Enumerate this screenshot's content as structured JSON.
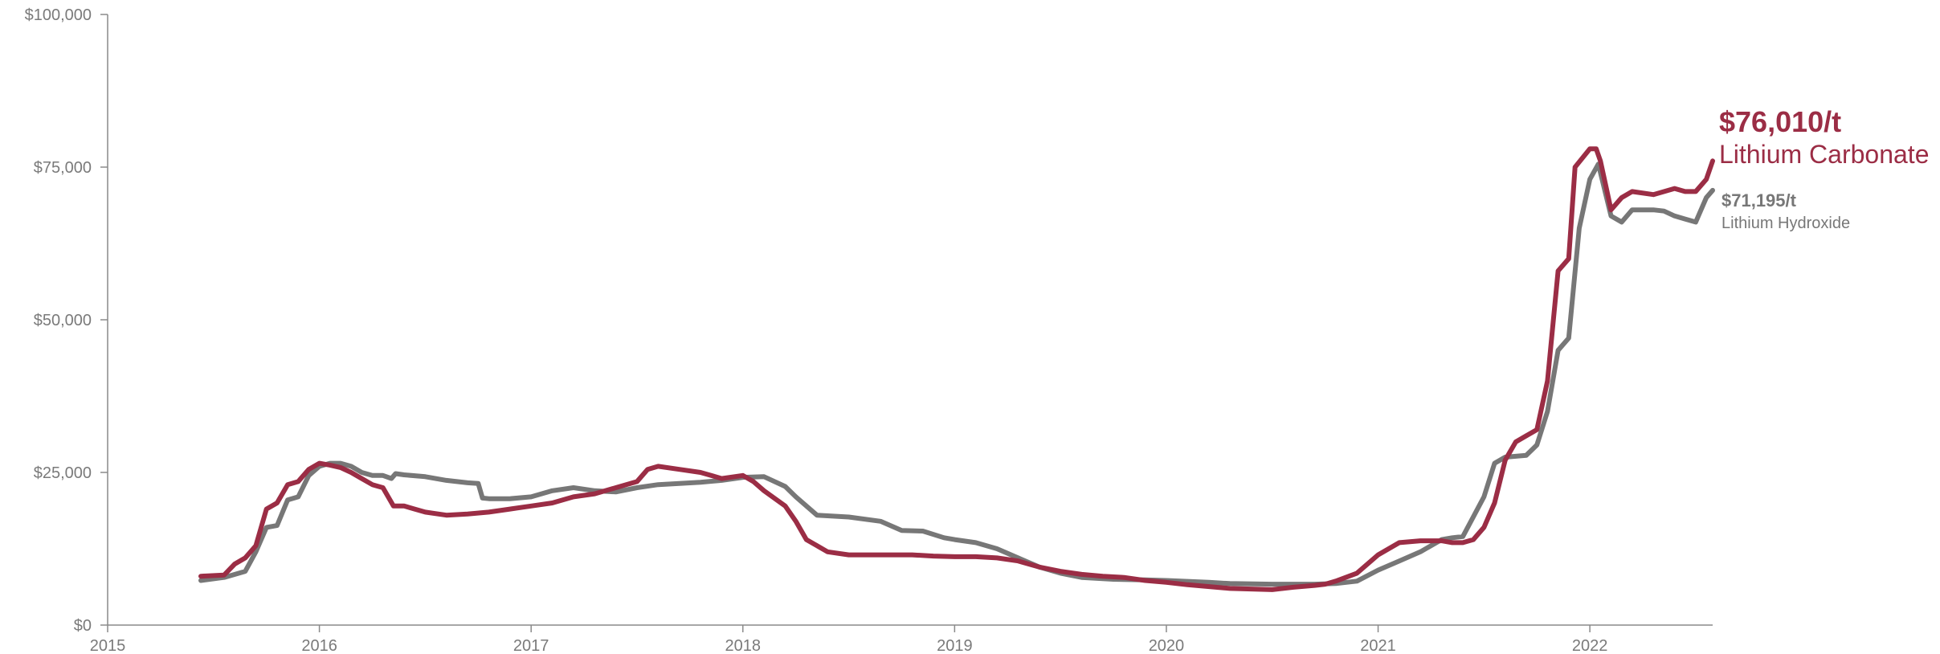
{
  "chart_data": {
    "type": "line",
    "xlim": [
      2015,
      2022.58
    ],
    "ylim": [
      0,
      100000
    ],
    "x_ticks": [
      2015,
      2016,
      2017,
      2018,
      2019,
      2020,
      2021,
      2022
    ],
    "x_tick_labels": [
      "2015",
      "2016",
      "2017",
      "2018",
      "2019",
      "2020",
      "2021",
      "2022"
    ],
    "y_ticks": [
      0,
      25000,
      50000,
      75000,
      100000
    ],
    "y_tick_labels": [
      "$0",
      "$25,000",
      "$50,000",
      "$75,000",
      "$100,000"
    ],
    "grid": false,
    "series": [
      {
        "name": "Lithium Hydroxide",
        "color": "#777777",
        "x": [
          2015.44,
          2015.55,
          2015.65,
          2015.7,
          2015.75,
          2015.8,
          2015.85,
          2015.9,
          2015.95,
          2016.0,
          2016.05,
          2016.1,
          2016.15,
          2016.2,
          2016.25,
          2016.3,
          2016.34,
          2016.36,
          2016.4,
          2016.5,
          2016.6,
          2016.7,
          2016.75,
          2016.77,
          2016.8,
          2016.9,
          2017.0,
          2017.1,
          2017.2,
          2017.3,
          2017.4,
          2017.5,
          2017.6,
          2017.7,
          2017.8,
          2017.9,
          2018.0,
          2018.1,
          2018.2,
          2018.25,
          2018.35,
          2018.5,
          2018.65,
          2018.75,
          2018.85,
          2018.95,
          2019.0,
          2019.1,
          2019.2,
          2019.3,
          2019.4,
          2019.5,
          2019.6,
          2019.75,
          2019.9,
          2020.0,
          2020.2,
          2020.3,
          2020.5,
          2020.7,
          2020.8,
          2020.9,
          2021.0,
          2021.1,
          2021.2,
          2021.3,
          2021.35,
          2021.4,
          2021.5,
          2021.55,
          2021.6,
          2021.7,
          2021.75,
          2021.8,
          2021.85,
          2021.9,
          2021.95,
          2022.0,
          2022.04,
          2022.1,
          2022.15,
          2022.2,
          2022.3,
          2022.35,
          2022.4,
          2022.45,
          2022.5,
          2022.55,
          2022.58
        ],
        "y": [
          7300,
          7800,
          8800,
          12000,
          16000,
          16300,
          20500,
          21000,
          24500,
          26000,
          26500,
          26500,
          26000,
          25000,
          24500,
          24500,
          24000,
          24800,
          24600,
          24300,
          23700,
          23300,
          23200,
          20800,
          20700,
          20700,
          21000,
          22000,
          22500,
          22000,
          21800,
          22500,
          23000,
          23200,
          23400,
          23700,
          24200,
          24300,
          22700,
          21000,
          18000,
          17700,
          17000,
          15500,
          15400,
          14300,
          14000,
          13500,
          12500,
          11000,
          9500,
          8500,
          7800,
          7500,
          7400,
          7300,
          7000,
          6800,
          6700,
          6700,
          6800,
          7200,
          9000,
          10500,
          12000,
          14000,
          14300,
          14500,
          21000,
          26500,
          27500,
          27800,
          29500,
          35000,
          45000,
          47000,
          65000,
          73000,
          75500,
          67000,
          66000,
          68000,
          68000,
          67800,
          67000,
          66500,
          66000,
          70000,
          71195
        ]
      },
      {
        "name": "Lithium Carbonate",
        "color": "#9b2d45",
        "x": [
          2015.44,
          2015.55,
          2015.6,
          2015.65,
          2015.7,
          2015.75,
          2015.8,
          2015.85,
          2015.9,
          2015.95,
          2016.0,
          2016.05,
          2016.1,
          2016.15,
          2016.2,
          2016.25,
          2016.3,
          2016.35,
          2016.4,
          2016.45,
          2016.5,
          2016.6,
          2016.7,
          2016.8,
          2016.9,
          2017.0,
          2017.1,
          2017.2,
          2017.3,
          2017.4,
          2017.5,
          2017.55,
          2017.6,
          2017.7,
          2017.8,
          2017.9,
          2018.0,
          2018.05,
          2018.1,
          2018.2,
          2018.25,
          2018.3,
          2018.4,
          2018.5,
          2018.6,
          2018.7,
          2018.8,
          2018.9,
          2019.0,
          2019.1,
          2019.2,
          2019.3,
          2019.4,
          2019.5,
          2019.6,
          2019.7,
          2019.8,
          2019.9,
          2020.0,
          2020.1,
          2020.3,
          2020.5,
          2020.6,
          2020.7,
          2020.75,
          2020.8,
          2020.9,
          2021.0,
          2021.1,
          2021.2,
          2021.3,
          2021.35,
          2021.4,
          2021.45,
          2021.5,
          2021.55,
          2021.6,
          2021.65,
          2021.7,
          2021.75,
          2021.8,
          2021.85,
          2021.9,
          2021.93,
          2022.0,
          2022.03,
          2022.05,
          2022.1,
          2022.15,
          2022.2,
          2022.3,
          2022.4,
          2022.45,
          2022.5,
          2022.55,
          2022.58
        ],
        "y": [
          8000,
          8200,
          10000,
          11000,
          13000,
          19000,
          20000,
          23000,
          23500,
          25500,
          26500,
          26200,
          25800,
          25000,
          24000,
          23000,
          22500,
          19500,
          19500,
          19000,
          18500,
          18000,
          18200,
          18500,
          19000,
          19500,
          20000,
          21000,
          21500,
          22500,
          23500,
          25500,
          26000,
          25500,
          25000,
          24000,
          24500,
          23500,
          22000,
          19500,
          17000,
          14000,
          12000,
          11500,
          11500,
          11500,
          11500,
          11300,
          11200,
          11200,
          11000,
          10500,
          9500,
          8800,
          8300,
          8000,
          7800,
          7300,
          7000,
          6600,
          6000,
          5800,
          6200,
          6500,
          6700,
          7200,
          8500,
          11500,
          13500,
          13800,
          13800,
          13500,
          13500,
          14000,
          16000,
          20000,
          27000,
          30000,
          31000,
          32000,
          40000,
          58000,
          60000,
          75000,
          78000,
          78000,
          76000,
          68000,
          70000,
          71000,
          70500,
          71500,
          71000,
          71000,
          73000,
          76010
        ]
      }
    ]
  },
  "annotations": {
    "carbonate_value": "$76,010/t",
    "carbonate_name": "Lithium Carbonate",
    "hydroxide_value": "$71,195/t",
    "hydroxide_name": "Lithium Hydroxide"
  }
}
